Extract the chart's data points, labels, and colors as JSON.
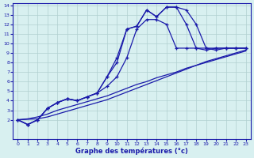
{
  "xlabel": "Graphe des températures (°c)",
  "x_values": [
    0,
    1,
    2,
    3,
    4,
    5,
    6,
    7,
    8,
    9,
    10,
    11,
    12,
    13,
    14,
    15,
    16,
    17,
    18,
    19,
    20,
    21,
    22,
    23
  ],
  "line1": [
    2.0,
    1.5,
    2.0,
    3.2,
    3.8,
    4.2,
    4.0,
    4.4,
    4.8,
    6.5,
    8.0,
    11.5,
    11.8,
    13.5,
    12.8,
    13.8,
    13.8,
    13.5,
    12.0,
    9.5,
    9.3,
    9.5,
    9.5,
    9.5
  ],
  "line2": [
    2.0,
    1.5,
    2.0,
    3.2,
    3.8,
    4.2,
    4.0,
    4.4,
    4.8,
    5.5,
    6.5,
    8.5,
    11.5,
    12.5,
    12.5,
    12.0,
    9.5,
    9.5,
    9.5,
    9.5,
    9.5,
    9.5,
    9.5,
    9.5
  ],
  "line3": [
    2.0,
    1.5,
    2.0,
    3.2,
    3.8,
    4.2,
    4.0,
    4.4,
    4.8,
    6.5,
    8.5,
    11.5,
    11.8,
    13.5,
    12.8,
    13.8,
    13.8,
    12.0,
    9.5,
    9.3,
    9.5,
    9.5,
    9.5,
    9.5
  ],
  "line_straight1": [
    2.0,
    2.05,
    2.1,
    2.3,
    2.6,
    2.9,
    3.2,
    3.5,
    3.8,
    4.1,
    4.5,
    4.9,
    5.3,
    5.7,
    6.1,
    6.5,
    6.9,
    7.3,
    7.7,
    8.1,
    8.4,
    8.7,
    9.0,
    9.3
  ],
  "line_straight2": [
    2.0,
    2.1,
    2.3,
    2.6,
    3.0,
    3.3,
    3.6,
    3.9,
    4.2,
    4.5,
    4.9,
    5.3,
    5.7,
    6.0,
    6.4,
    6.7,
    7.0,
    7.4,
    7.7,
    8.0,
    8.3,
    8.6,
    8.9,
    9.2
  ],
  "line_color": "#1a1aaa",
  "bg_color": "#d8f0f0",
  "grid_color": "#b0d0d0",
  "ylim": [
    0,
    14
  ],
  "xlim": [
    -0.5,
    23.5
  ],
  "yticks": [
    2,
    3,
    4,
    5,
    6,
    7,
    8,
    9,
    10,
    11,
    12,
    13,
    14
  ],
  "xticks": [
    0,
    1,
    2,
    3,
    4,
    5,
    6,
    7,
    8,
    9,
    10,
    11,
    12,
    13,
    14,
    15,
    16,
    17,
    18,
    19,
    20,
    21,
    22,
    23
  ]
}
